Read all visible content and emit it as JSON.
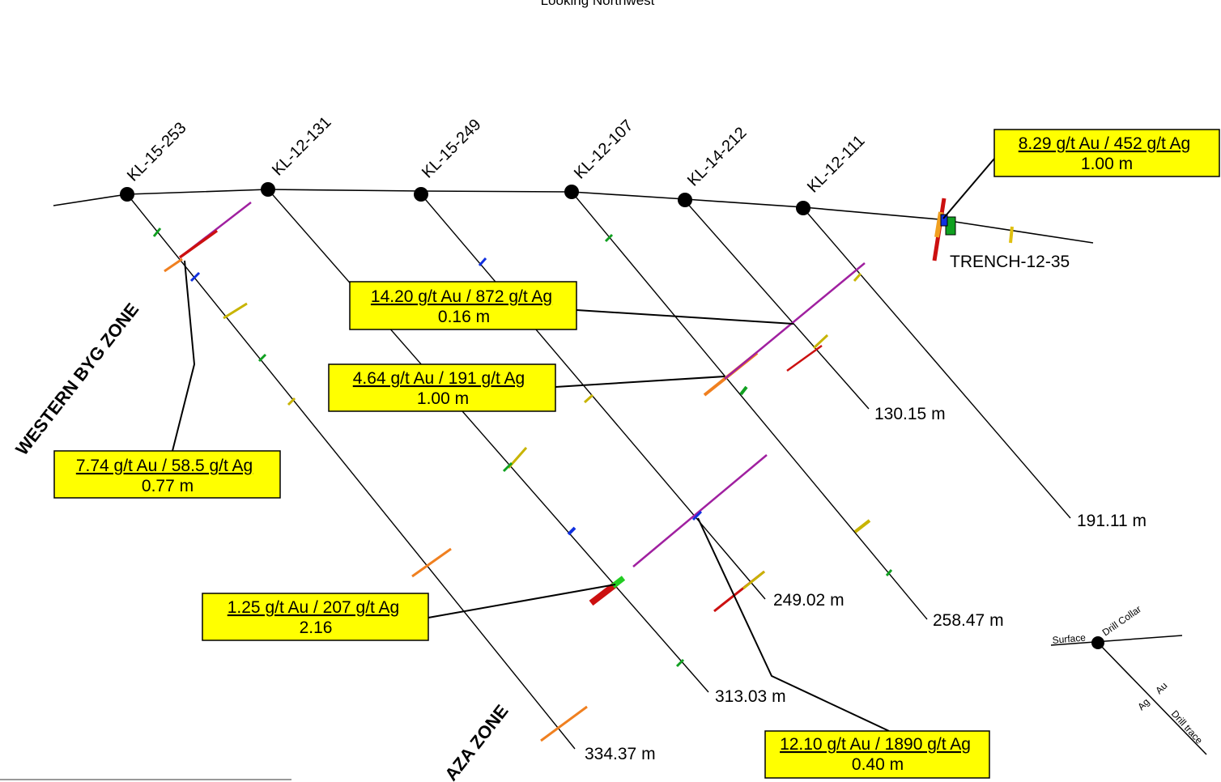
{
  "header": {
    "view_text": "Looking Northwest"
  },
  "zones": {
    "western": "WESTERN BYG ZONE",
    "plaza": "AZA ZONE"
  },
  "holes": [
    {
      "id": "KL-15-253",
      "depth_label": "334.37 m"
    },
    {
      "id": "KL-12-131",
      "depth_label": "313.03 m"
    },
    {
      "id": "KL-15-249",
      "depth_label": "249.02 m"
    },
    {
      "id": "KL-12-107",
      "depth_label": "258.47 m"
    },
    {
      "id": "KL-14-212",
      "depth_label": "130.15 m"
    },
    {
      "id": "KL-12-111",
      "depth_label": "191.11 m"
    }
  ],
  "trench": {
    "id": "TRENCH-12-35"
  },
  "intercepts": [
    {
      "grade": "8.29 g/t Au / 452 g/t Ag",
      "width": "1.00 m"
    },
    {
      "grade": "14.20 g/t Au / 872 g/t Ag",
      "width": "0.16 m"
    },
    {
      "grade": "4.64 g/t Au / 191 g/t Ag",
      "width": "1.00 m"
    },
    {
      "grade": "7.74 g/t Au / 58.5 g/t Ag",
      "width": "0.77 m"
    },
    {
      "grade": "1.25 g/t Au / 207 g/t Ag",
      "width": "2.16"
    },
    {
      "grade": "12.10 g/t Au / 1890 g/t Ag",
      "width": "0.40 m"
    }
  ],
  "legend": {
    "surface": "Surface",
    "collar": "Drill Collar",
    "au": "Au",
    "ag": "Ag",
    "trace": "Drill trace"
  },
  "colors": {
    "label_fill": "#ffff00",
    "purple": "#a020a0",
    "orange": "#f08020",
    "olive": "#c8b400",
    "red": "#cc1010",
    "green": "#10a020",
    "blue": "#1030e0"
  }
}
